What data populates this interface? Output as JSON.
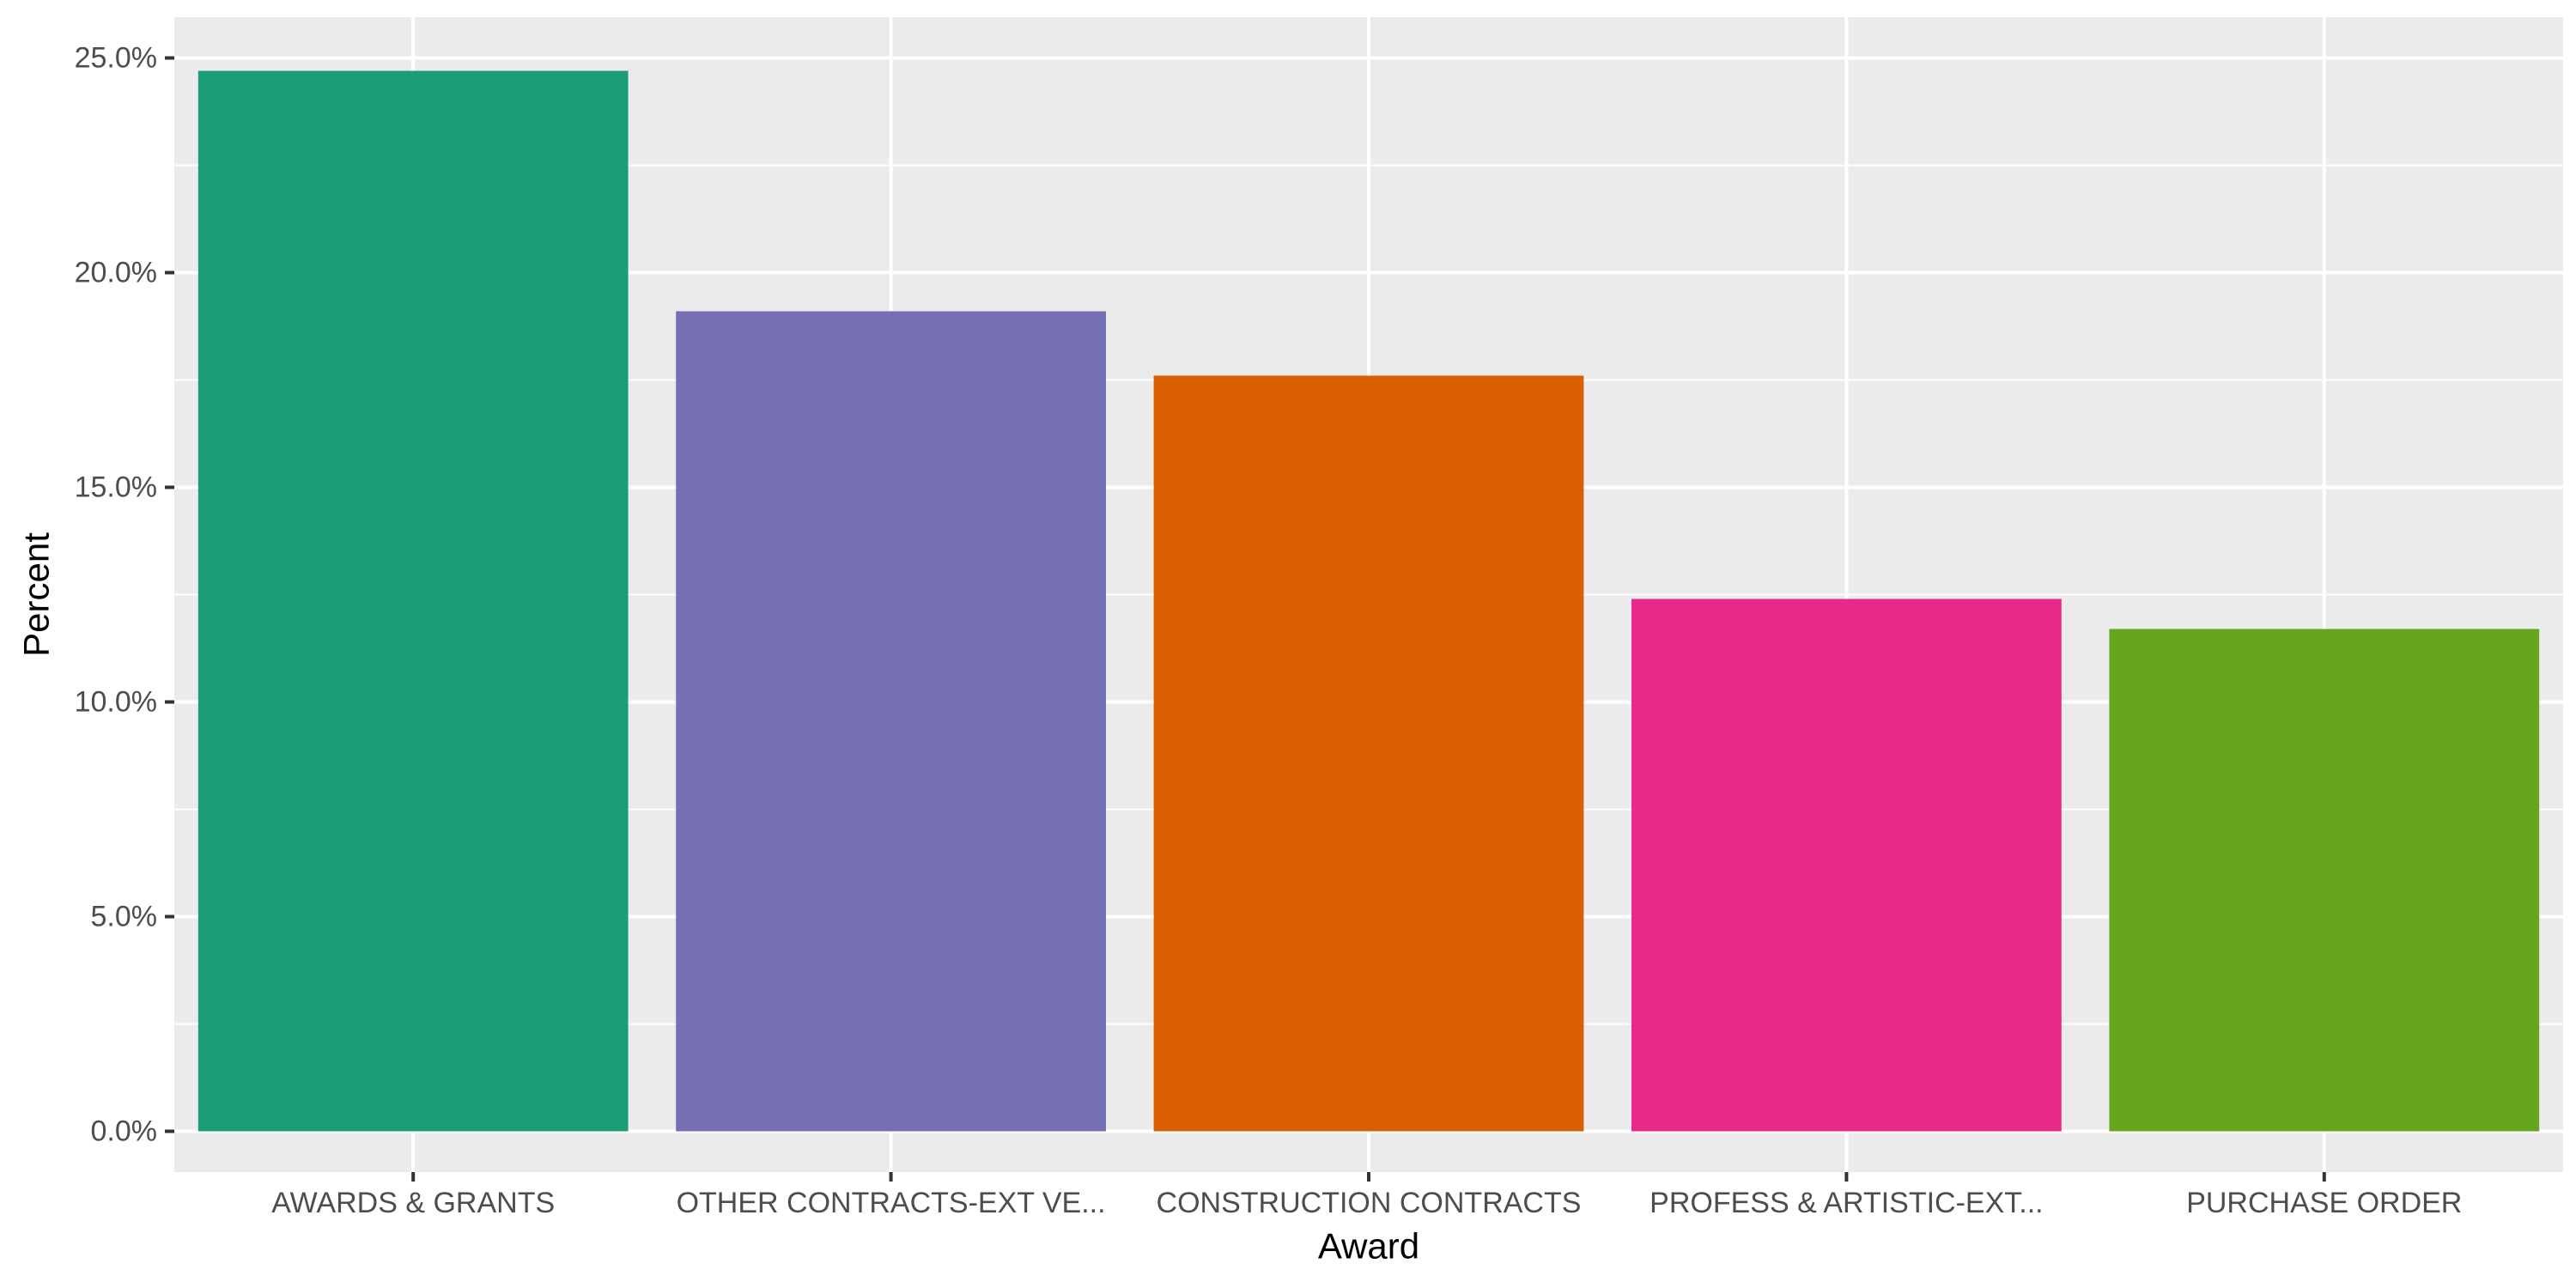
{
  "chart_data": {
    "type": "bar",
    "categories": [
      "AWARDS & GRANTS",
      "OTHER CONTRACTS-EXT VE...",
      "CONSTRUCTION CONTRACTS",
      "PROFESS & ARTISTIC-EXT...",
      "PURCHASE ORDER"
    ],
    "values": [
      24.7,
      19.1,
      17.6,
      12.4,
      11.7
    ],
    "colors": [
      "#1b9e77",
      "#7570b3",
      "#d95f02",
      "#e7298a",
      "#66a61e"
    ],
    "xlabel": "Award",
    "ylabel": "Percent",
    "ylim": [
      -0.95,
      25.95
    ],
    "yticks": [
      0,
      5,
      10,
      15,
      20,
      25
    ],
    "ytick_labels": [
      "0.0%",
      "5.0%",
      "10.0%",
      "15.0%",
      "20.0%",
      "25.0%"
    ],
    "panel_background": "#ebebeb",
    "grid_color": "#ffffff",
    "grid": true,
    "legend": "none"
  }
}
